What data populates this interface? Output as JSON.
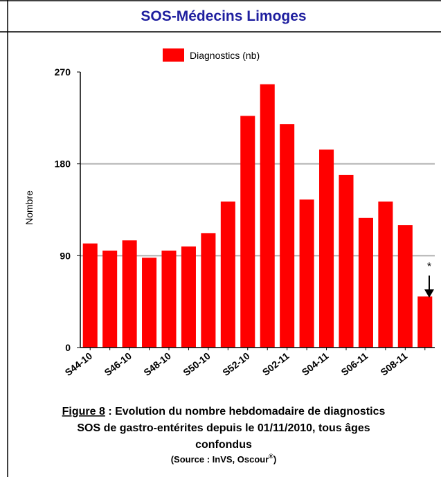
{
  "header": {
    "title": "SOS-Médecins Limoges"
  },
  "chart_data": {
    "type": "bar",
    "legend": "Diagnostics (nb)",
    "y_label": "Nombre",
    "categories": [
      "S44-10",
      null,
      "S46-10",
      null,
      "S48-10",
      null,
      "S50-10",
      null,
      "S52-10",
      null,
      "S02-11",
      null,
      "S04-11",
      null,
      "S06-11",
      null,
      "S08-11",
      null
    ],
    "values": [
      102,
      95,
      105,
      88,
      95,
      99,
      112,
      143,
      227,
      258,
      219,
      145,
      194,
      169,
      127,
      143,
      120,
      50
    ],
    "color": "#ff0000",
    "ylim": [
      0,
      270
    ],
    "yticks": [
      0,
      90,
      180,
      270
    ],
    "grid": true,
    "annotation": "*"
  },
  "caption": {
    "figure": "Figure 8",
    "line1": " : Evolution du nombre hebdomadaire de diagnostics",
    "line2": "SOS de gastro-entérites depuis le 01/11/2010, tous âges",
    "line3": "confondus",
    "source": "(Source : InVS, Oscour",
    "source_sup": "®",
    "source_end": ")"
  }
}
